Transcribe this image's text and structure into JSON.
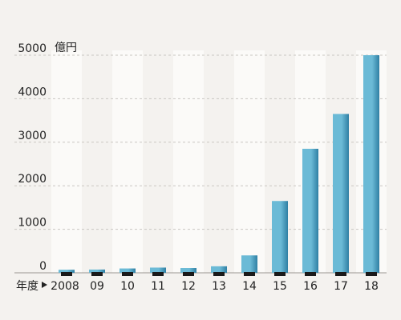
{
  "chart_data": {
    "type": "bar",
    "unit_label": "億円",
    "year_label": "年度",
    "categories": [
      "2008",
      "09",
      "10",
      "11",
      "12",
      "13",
      "14",
      "15",
      "16",
      "17",
      "18"
    ],
    "values": [
      70,
      75,
      100,
      120,
      110,
      150,
      400,
      1650,
      2850,
      3650,
      5000
    ],
    "ylim": [
      0,
      5000
    ],
    "yticks": [
      0,
      1000,
      2000,
      3000,
      4000,
      5000
    ],
    "grid": true,
    "colors": {
      "bar_light": "#6bbad6",
      "bar_dark": "#2f7fa3",
      "band": "#fbfaf8",
      "gridline": "#c9c6c1",
      "bar_foot": "#1a1a1a"
    }
  }
}
